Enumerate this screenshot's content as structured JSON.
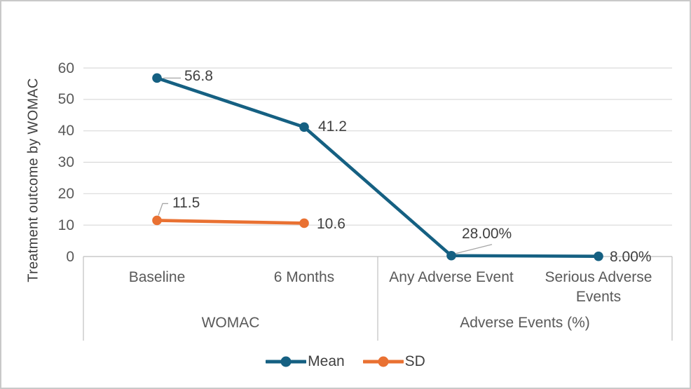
{
  "figure": {
    "background": "#FFFFFF",
    "border_color": "#C9C9C9"
  },
  "chart_data": {
    "type": "line",
    "title": "",
    "xlabel": "",
    "ylabel": "Treatment outcome by WOMAC",
    "ylim": [
      0,
      60
    ],
    "yticks": [
      0,
      10,
      20,
      30,
      40,
      50,
      60
    ],
    "grid": true,
    "legend_position": "bottom",
    "categories": [
      "Baseline",
      "6 Months",
      "Any Adverse Event",
      "Serious Adverse Events"
    ],
    "category_groups": [
      {
        "label": "WOMAC",
        "start": 0,
        "end": 1
      },
      {
        "label": "Adverse Events (%)",
        "start": 2,
        "end": 3
      }
    ],
    "series": [
      {
        "name": "Mean",
        "color": "#156082",
        "values": [
          56.8,
          41.2,
          0.28,
          0.08
        ],
        "data_labels": [
          "56.8",
          "41.2",
          "28.00%",
          "8.00%"
        ]
      },
      {
        "name": "SD",
        "color": "#E97132",
        "values": [
          11.5,
          10.6,
          null,
          null
        ],
        "data_labels": [
          "11.5",
          "10.6",
          null,
          null
        ]
      }
    ]
  },
  "colors": {
    "gridline": "#D9D9D9",
    "axis_line": "#BFBFBF",
    "tick_text": "#595959",
    "data_label_text": "#404040",
    "leader_line": "#A6A6A6"
  }
}
